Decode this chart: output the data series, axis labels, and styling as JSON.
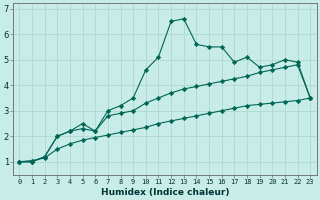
{
  "xlabel": "Humidex (Indice chaleur)",
  "background_color": "#c8ece8",
  "grid_color": "#b0d8d0",
  "line_color": "#006655",
  "xlim": [
    -0.5,
    23.5
  ],
  "ylim": [
    0.5,
    7.2
  ],
  "x": [
    0,
    1,
    2,
    3,
    4,
    5,
    6,
    7,
    8,
    9,
    10,
    11,
    12,
    13,
    14,
    15,
    16,
    17,
    18,
    19,
    20,
    21,
    22,
    23
  ],
  "y_curve1": [
    1.0,
    1.0,
    1.2,
    2.0,
    2.2,
    2.5,
    2.2,
    3.0,
    3.2,
    3.5,
    4.6,
    5.1,
    6.5,
    6.6,
    5.6,
    5.5,
    5.5,
    4.9,
    5.1,
    4.7,
    4.8,
    5.0,
    4.9,
    3.5
  ],
  "y_curve2": [
    1.0,
    1.0,
    1.2,
    2.0,
    2.2,
    2.3,
    2.2,
    2.8,
    2.9,
    3.0,
    3.3,
    3.5,
    3.7,
    3.85,
    3.95,
    4.05,
    4.15,
    4.25,
    4.35,
    4.5,
    4.6,
    4.7,
    4.8,
    3.5
  ],
  "y_line": [
    1.0,
    1.05,
    1.15,
    1.5,
    1.7,
    1.85,
    1.95,
    2.05,
    2.15,
    2.25,
    2.35,
    2.5,
    2.6,
    2.7,
    2.8,
    2.9,
    3.0,
    3.1,
    3.2,
    3.25,
    3.3,
    3.35,
    3.4,
    3.5
  ],
  "xtick_labels": [
    "0",
    "1",
    "2",
    "3",
    "4",
    "5",
    "6",
    "7",
    "8",
    "9",
    "10",
    "11",
    "12",
    "13",
    "14",
    "15",
    "16",
    "17",
    "18",
    "19",
    "20",
    "21",
    "22",
    "23"
  ],
  "ytick_values": [
    1,
    2,
    3,
    4,
    5,
    6,
    7
  ],
  "ytick_labels": [
    "1",
    "2",
    "3",
    "4",
    "5",
    "6",
    "7"
  ]
}
